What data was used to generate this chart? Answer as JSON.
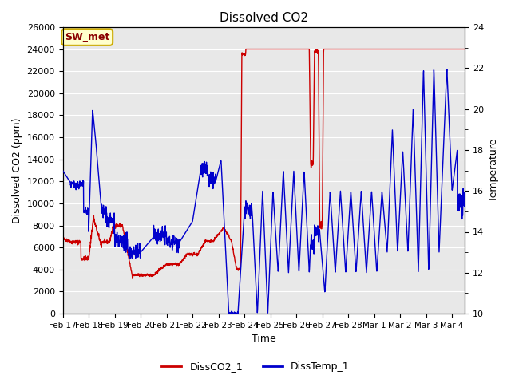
{
  "title": "Dissolved CO2",
  "xlabel": "Time",
  "ylabel_left": "Dissolved CO2 (ppm)",
  "ylabel_right": "Temperature",
  "legend_label1": "DissCO2_1",
  "legend_label2": "DissTemp_1",
  "annotation_text": "SW_met",
  "left_ylim": [
    0,
    26000
  ],
  "right_ylim": [
    10,
    24
  ],
  "left_yticks": [
    0,
    2000,
    4000,
    6000,
    8000,
    10000,
    12000,
    14000,
    16000,
    18000,
    20000,
    22000,
    24000,
    26000
  ],
  "right_yticks_major": [
    10,
    12,
    14,
    16,
    18,
    20,
    22,
    24
  ],
  "right_yticks_minor": [
    11,
    13,
    15,
    17,
    19,
    21,
    23
  ],
  "background_color": "#e8e8e8",
  "co2_color": "#cc0000",
  "temp_color": "#0000cc",
  "figsize": [
    6.4,
    4.8
  ],
  "dpi": 100,
  "xtick_labels": [
    "Feb 17",
    "Feb 18",
    "Feb 19",
    "Feb 20",
    "Feb 21",
    "Feb 22",
    "Feb 23",
    "Feb 24",
    "Feb 25",
    "Feb 26",
    "Feb 27",
    "Feb 28",
    "Mar 1",
    "Mar 2",
    "Mar 3",
    "Mar 4"
  ]
}
